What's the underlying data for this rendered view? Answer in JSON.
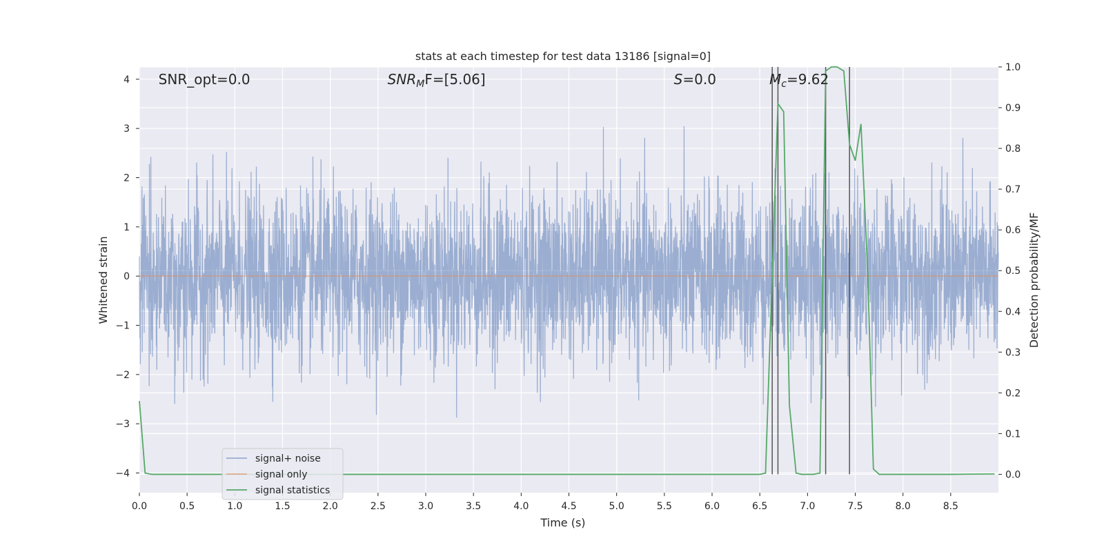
{
  "chart_data": {
    "type": "line",
    "title": "stats at each timestep for test data 13186 [signal=0]",
    "xlabel": "Time (s)",
    "ylabel": "Whitened strain",
    "y2label": "Detection probability/MF",
    "xlim": [
      0.0,
      9.0
    ],
    "ylim": [
      -4.4,
      4.25
    ],
    "y2lim": [
      -0.045,
      1.0
    ],
    "xticks": [
      "0.0",
      "0.5",
      "1.0",
      "1.5",
      "2.0",
      "2.5",
      "3.0",
      "3.5",
      "4.0",
      "4.5",
      "5.0",
      "5.5",
      "6.0",
      "6.5",
      "7.0",
      "7.5",
      "8.0",
      "8.5"
    ],
    "yticks": [
      "−4",
      "−3",
      "−2",
      "−1",
      "0",
      "1",
      "2",
      "3",
      "4"
    ],
    "y2ticks": [
      "0.0",
      "0.1",
      "0.2",
      "0.3",
      "0.4",
      "0.5",
      "0.6",
      "0.7",
      "0.8",
      "0.9",
      "1.0"
    ],
    "grid": true,
    "legend_placement": "lower-left",
    "annotations": [
      {
        "prefix": "SNR_opt=0.0",
        "italic": "",
        "sub": "",
        "suffix": ""
      },
      {
        "prefix": "",
        "italic": "SNR",
        "sub": "M",
        "suffix": "F=[5.06]"
      },
      {
        "prefix": "",
        "italic": "S",
        "sub": "",
        "suffix": "=0.0"
      },
      {
        "prefix": "",
        "italic": "M",
        "sub": "c",
        "suffix": "=9.62"
      }
    ],
    "vertical_lines_x": [
      6.63,
      6.69,
      7.19,
      7.44
    ],
    "series": [
      {
        "name": "signal+ noise",
        "color": "#4c72b0",
        "kind": "noise",
        "std": 0.85,
        "t_start": 0.0,
        "t_end": 9.0
      },
      {
        "name": "signal only",
        "color": "#dd8452",
        "kind": "flat",
        "value": 0.0
      },
      {
        "name": "signal statistics",
        "color": "#55a868",
        "axis": "right",
        "x": [
          0.0,
          0.06,
          0.13,
          0.5,
          1.0,
          2.0,
          3.0,
          4.0,
          5.0,
          6.0,
          6.5,
          6.56,
          6.69,
          6.75,
          6.81,
          6.88,
          6.94,
          7.0,
          7.06,
          7.13,
          7.19,
          7.25,
          7.31,
          7.38,
          7.44,
          7.5,
          7.56,
          7.63,
          7.69,
          7.75,
          7.81,
          8.0,
          8.5,
          8.96
        ],
        "y": [
          0.18,
          0.003,
          0.0,
          0.0,
          0.0,
          0.0,
          0.0,
          0.0,
          0.0,
          0.0,
          0.0,
          0.003,
          0.91,
          0.89,
          0.17,
          0.003,
          0.0,
          0.0,
          0.0,
          0.003,
          0.99,
          1.0,
          1.0,
          0.99,
          0.81,
          0.77,
          0.86,
          0.5,
          0.013,
          0.0,
          0.0,
          0.0,
          0.0,
          0.001
        ]
      }
    ]
  }
}
